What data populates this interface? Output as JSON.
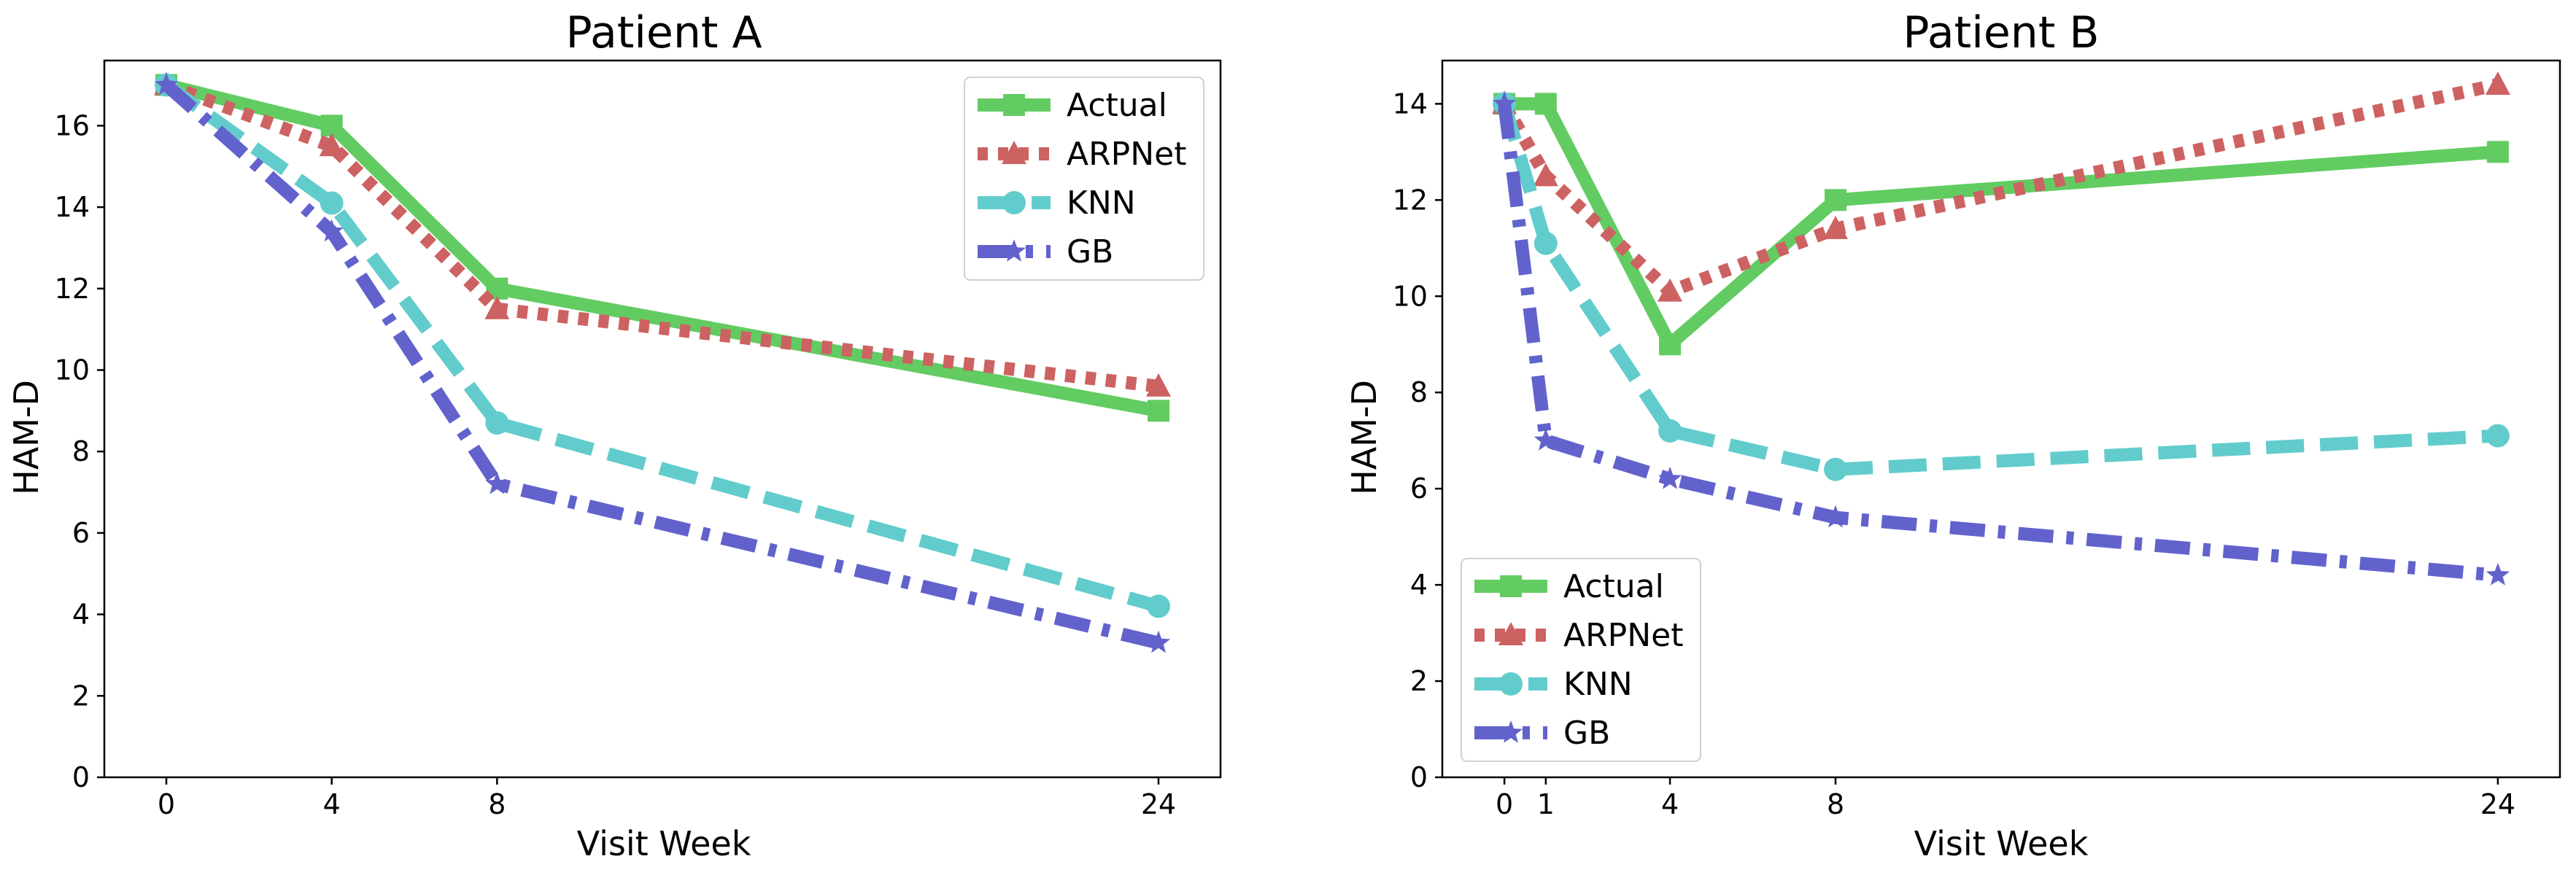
{
  "chart_data": [
    {
      "type": "line",
      "title": "Patient A",
      "xlabel": "Visit Week",
      "ylabel": "HAM-D",
      "xlim": [
        -1.5,
        25.5
      ],
      "ylim": [
        0,
        17.6
      ],
      "xticks": [
        0,
        4,
        8,
        24
      ],
      "yticks": [
        0,
        2,
        4,
        6,
        8,
        10,
        12,
        14,
        16
      ],
      "legend_location": "top-right",
      "series": [
        {
          "name": "Actual",
          "x": [
            0,
            4,
            8,
            24
          ],
          "values": [
            17,
            16,
            12,
            9
          ],
          "color": "#62cc62",
          "line_style": "solid",
          "marker": "square"
        },
        {
          "name": "ARPNet",
          "x": [
            0,
            4,
            8,
            24
          ],
          "values": [
            17,
            15.5,
            11.5,
            9.6
          ],
          "color": "#cd6262",
          "line_style": "dotted",
          "marker": "triangle"
        },
        {
          "name": "KNN",
          "x": [
            0,
            4,
            8,
            24
          ],
          "values": [
            17,
            14.1,
            8.7,
            4.2
          ],
          "color": "#62cccc",
          "line_style": "dashed",
          "marker": "circle"
        },
        {
          "name": "GB",
          "x": [
            0,
            4,
            8,
            24
          ],
          "values": [
            17,
            13.4,
            7.2,
            3.3
          ],
          "color": "#6262cd",
          "line_style": "dashdot",
          "marker": "star"
        }
      ]
    },
    {
      "type": "line",
      "title": "Patient B",
      "xlabel": "Visit Week",
      "ylabel": "HAM-D",
      "xlim": [
        -1.5,
        25.5
      ],
      "ylim": [
        0,
        14.9
      ],
      "xticks": [
        0,
        1,
        4,
        8,
        24
      ],
      "yticks": [
        0,
        2,
        4,
        6,
        8,
        10,
        12,
        14
      ],
      "legend_location": "bottom-left",
      "series": [
        {
          "name": "Actual",
          "x": [
            0,
            1,
            4,
            8,
            24
          ],
          "values": [
            14,
            14,
            9,
            12,
            13
          ],
          "color": "#62cc62",
          "line_style": "solid",
          "marker": "square"
        },
        {
          "name": "ARPNet",
          "x": [
            0,
            1,
            4,
            8,
            24
          ],
          "values": [
            14,
            12.5,
            10.1,
            11.4,
            14.4
          ],
          "color": "#cd6262",
          "line_style": "dotted",
          "marker": "triangle"
        },
        {
          "name": "KNN",
          "x": [
            0,
            1,
            4,
            8,
            24
          ],
          "values": [
            14,
            11.1,
            7.2,
            6.4,
            7.1
          ],
          "color": "#62cccc",
          "line_style": "dashed",
          "marker": "circle"
        },
        {
          "name": "GB",
          "x": [
            0,
            1,
            4,
            8,
            24
          ],
          "values": [
            14,
            7,
            6.2,
            5.4,
            4.2
          ],
          "color": "#6262cd",
          "line_style": "dashdot",
          "marker": "star"
        }
      ]
    }
  ]
}
